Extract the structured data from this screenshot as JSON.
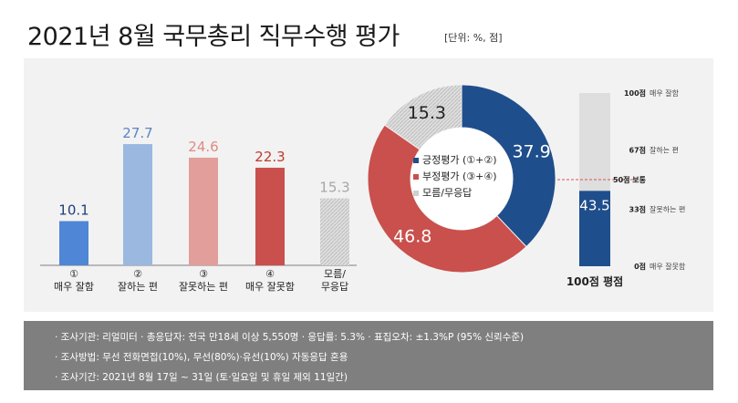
{
  "title": "2021년 8월 국무총리 직무수행 평가",
  "unit": "[단위: %, 점]",
  "chart_data": [
    {
      "type": "bar",
      "categories": [
        {
          "num": "①",
          "label": "매우 잘함"
        },
        {
          "num": "②",
          "label": "잘하는 편"
        },
        {
          "num": "③",
          "label": "잘못하는 편"
        },
        {
          "num": "④",
          "label": "매우 잘못함"
        },
        {
          "num": "모름/",
          "label": "무응답"
        }
      ],
      "values": [
        10.1,
        27.7,
        24.6,
        22.3,
        15.3
      ],
      "colors": [
        "#4f86d6",
        "#9ab8e0",
        "#e29e9a",
        "#c9504c",
        "#d9d9d9"
      ],
      "label_colors": [
        "#1f3f7a",
        "#5b84c6",
        "#e08a85",
        "#c0392b",
        "#a6a6a6"
      ]
    },
    {
      "type": "pie",
      "slices": [
        {
          "name": "긍정평가 (①+②)",
          "value": 37.9,
          "color": "#1f4e8c",
          "label_color": "#ffffff"
        },
        {
          "name": "부정평가 (③+④)",
          "value": 46.8,
          "color": "#c9504c",
          "label_color": "#ffffff"
        },
        {
          "name": "모름/무응답",
          "value": 15.3,
          "color": "#e0e0e0",
          "label_color": "#222222"
        }
      ]
    },
    {
      "type": "bar",
      "title": "100점 평점",
      "value": 43.5,
      "ylim": [
        0,
        100
      ],
      "ticks": [
        {
          "value": 100,
          "score": "100점",
          "desc": "매우 잘함"
        },
        {
          "value": 67,
          "score": "67점",
          "desc": "잘하는 편"
        },
        {
          "value": 50,
          "score": "50점 보통",
          "desc": ""
        },
        {
          "value": 33,
          "score": "33점",
          "desc": "잘못하는 편"
        },
        {
          "value": 0,
          "score": "0점",
          "desc": "매우 잘못함"
        }
      ]
    }
  ],
  "footer": [
    "· 조사기관: 리얼미터  · 총응답자: 전국 만18세 이상 5,550명  · 응답률: 5.3% · 표집오차: ±1.3%P (95% 신뢰수준)",
    "· 조사방법: 무선 전화면접(10%), 무선(80%)·유선(10%) 자동응답 혼용",
    "· 조사기간: 2021년 8월 17일 ~ 31일 (토·일요일 및 휴일 제외 11일간)"
  ]
}
